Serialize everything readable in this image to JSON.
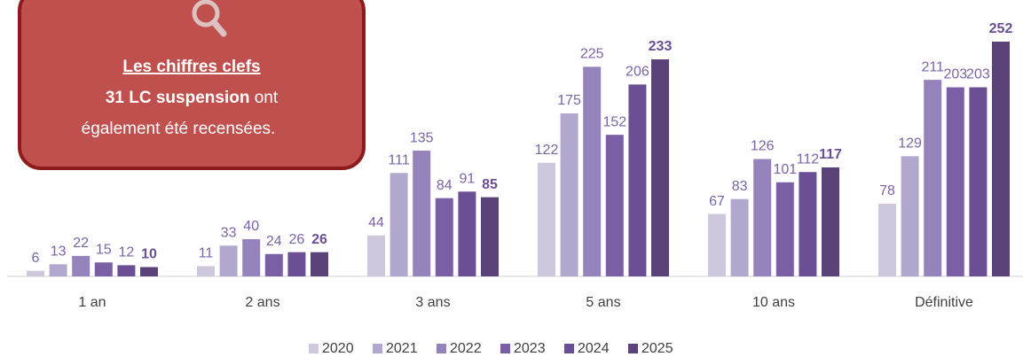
{
  "chart_data": {
    "type": "bar",
    "categories": [
      "1 an",
      "2 ans",
      "3 ans",
      "5 ans",
      "10 ans",
      "Définitive"
    ],
    "series": [
      {
        "name": "2020",
        "color": "#cfc8dc",
        "values": [
          6,
          11,
          44,
          122,
          67,
          78
        ]
      },
      {
        "name": "2021",
        "color": "#b2a7cc",
        "values": [
          13,
          33,
          111,
          175,
          83,
          129
        ]
      },
      {
        "name": "2022",
        "color": "#9683bb",
        "values": [
          22,
          40,
          135,
          225,
          126,
          211
        ]
      },
      {
        "name": "2023",
        "color": "#7a5fa6",
        "values": [
          15,
          24,
          84,
          152,
          101,
          203
        ]
      },
      {
        "name": "2024",
        "color": "#6a4f95",
        "values": [
          12,
          26,
          91,
          206,
          112,
          203
        ]
      },
      {
        "name": "2025",
        "color": "#5b4279",
        "values": [
          10,
          26,
          85,
          233,
          117,
          252
        ]
      }
    ],
    "legend": "bottom"
  },
  "callout": {
    "title": "Les chiffres clefs",
    "line1_bold": "31 LC suspension",
    "line1_rest": " ont",
    "line2": "également été recensées."
  }
}
